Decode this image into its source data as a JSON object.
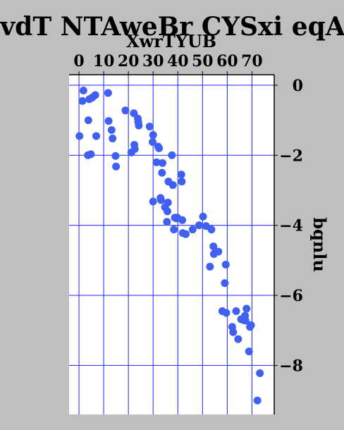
{
  "chart_data": {
    "type": "scatter",
    "title": "vdT NTAweBr CYSxi  eqA",
    "xlabel": "XwrTYUB",
    "ylabel": "bqnlu",
    "xlim": [
      -4,
      79
    ],
    "ylim": [
      -9.4,
      0.3
    ],
    "x_axis_position": "top",
    "y_axis_position": "right",
    "y_inverted": true,
    "grid": true,
    "colors": {
      "background": "#bfbfbf",
      "plot": "#ffffff",
      "grid": "#2020ff",
      "points": "#4060f0",
      "axis": "#000000"
    },
    "xticks": [
      0,
      10,
      20,
      30,
      40,
      50,
      60,
      70
    ],
    "xtick_labels": [
      "0",
      "10",
      "20",
      "30",
      "40",
      "50",
      "60",
      "70"
    ],
    "yticks": [
      0,
      -2,
      -4,
      -6,
      -8
    ],
    "ytick_labels": [
      "0",
      "−2",
      "−4",
      "−6",
      "−8"
    ],
    "series": [
      {
        "points": [
          [
            0.2,
            -1.45
          ],
          [
            1.4,
            -0.45
          ],
          [
            1.8,
            -0.15
          ],
          [
            3.8,
            -1.0
          ],
          [
            3.6,
            -2.0
          ],
          [
            4.2,
            -0.4
          ],
          [
            4.8,
            -1.97
          ],
          [
            5.4,
            -0.35
          ],
          [
            6.6,
            -0.28
          ],
          [
            7.0,
            -1.45
          ],
          [
            11.8,
            -0.22
          ],
          [
            12.0,
            -1.02
          ],
          [
            13.2,
            -1.28
          ],
          [
            13.6,
            -1.52
          ],
          [
            14.8,
            -2.02
          ],
          [
            15.0,
            -2.32
          ],
          [
            18.8,
            -0.72
          ],
          [
            21.2,
            -1.92
          ],
          [
            22.2,
            -0.8
          ],
          [
            22.4,
            -1.7
          ],
          [
            22.6,
            -1.82
          ],
          [
            23.8,
            -0.95
          ],
          [
            24.0,
            -1.05
          ],
          [
            24.2,
            -1.15
          ],
          [
            28.6,
            -1.18
          ],
          [
            29.8,
            -1.62
          ],
          [
            30.0,
            -1.42
          ],
          [
            30.0,
            -3.32
          ],
          [
            31.4,
            -2.2
          ],
          [
            32.0,
            -1.75
          ],
          [
            32.4,
            -1.8
          ],
          [
            33.0,
            -3.22
          ],
          [
            33.2,
            -3.28
          ],
          [
            33.6,
            -2.5
          ],
          [
            33.8,
            -2.22
          ],
          [
            34.8,
            -3.48
          ],
          [
            35.6,
            -3.9
          ],
          [
            35.8,
            -3.6
          ],
          [
            36.0,
            -3.35
          ],
          [
            36.2,
            -2.75
          ],
          [
            37.6,
            -2.0
          ],
          [
            38.0,
            -2.85
          ],
          [
            38.4,
            -4.12
          ],
          [
            38.8,
            -3.78
          ],
          [
            39.4,
            -3.8
          ],
          [
            39.8,
            -3.78
          ],
          [
            41.4,
            -2.55
          ],
          [
            41.6,
            -2.75
          ],
          [
            41.8,
            -3.85
          ],
          [
            42.0,
            -4.22
          ],
          [
            43.2,
            -4.25
          ],
          [
            46.0,
            -4.12
          ],
          [
            48.6,
            -4.0
          ],
          [
            50.2,
            -3.75
          ],
          [
            51.4,
            -4.02
          ],
          [
            53.6,
            -4.12
          ],
          [
            53.0,
            -5.18
          ],
          [
            54.4,
            -4.6
          ],
          [
            54.6,
            -4.82
          ],
          [
            55.4,
            -4.75
          ],
          [
            56.4,
            -4.75
          ],
          [
            58.0,
            -6.45
          ],
          [
            59.0,
            -5.65
          ],
          [
            59.4,
            -5.12
          ],
          [
            59.6,
            -6.5
          ],
          [
            62.0,
            -6.9
          ],
          [
            62.4,
            -7.05
          ],
          [
            63.6,
            -6.45
          ],
          [
            64.4,
            -7.25
          ],
          [
            65.6,
            -6.68
          ],
          [
            66.4,
            -6.7
          ],
          [
            67.2,
            -6.58
          ],
          [
            67.4,
            -6.72
          ],
          [
            67.8,
            -6.38
          ],
          [
            68.8,
            -7.6
          ],
          [
            69.2,
            -6.9
          ],
          [
            69.6,
            -6.85
          ],
          [
            72.2,
            -9.0
          ],
          [
            73.2,
            -8.22
          ]
        ]
      }
    ]
  }
}
